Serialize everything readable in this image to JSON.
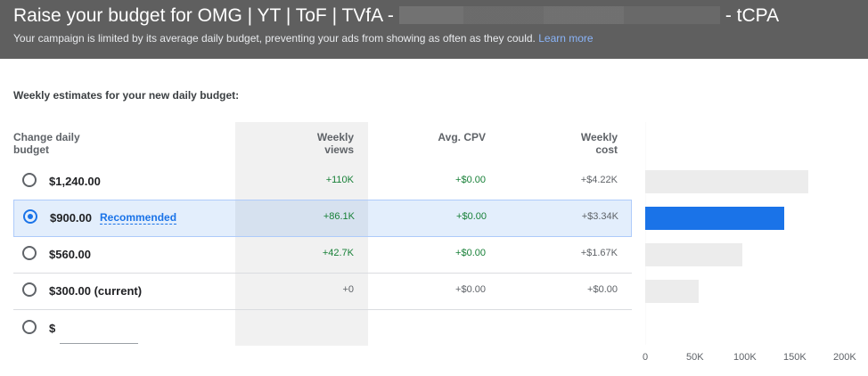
{
  "header": {
    "title_prefix": "Raise your budget for OMG | YT | ToF | TVfA -",
    "title_suffix": "- tCPA",
    "subtitle": "Your campaign is limited by its average daily budget, preventing your ads from showing as often as they could.",
    "learn_more": "Learn more"
  },
  "estimates_label": "Weekly estimates for your new daily budget:",
  "columns": {
    "budget_line1": "Change daily",
    "budget_line2": "budget",
    "views_line1": "Weekly",
    "views_line2": "views",
    "cpv": "Avg. CPV",
    "cost_line1": "Weekly",
    "cost_line2": "cost"
  },
  "rows": [
    {
      "amount": "$1,240.00",
      "views": "+110K",
      "cpv": "+$0.00",
      "cost": "+$4.22K",
      "selected": false,
      "views_value": 110000
    },
    {
      "amount": "$900.00",
      "badge": "Recommended",
      "views": "+86.1K",
      "cpv": "+$0.00",
      "cost": "+$3.34K",
      "selected": true,
      "views_value": 86100
    },
    {
      "amount": "$560.00",
      "views": "+42.7K",
      "cpv": "+$0.00",
      "cost": "+$1.67K",
      "selected": false,
      "views_value": 42700
    },
    {
      "amount": "$300.00 (current)",
      "views": "+0",
      "cpv": "+$0.00",
      "cost": "+$0.00",
      "selected": false,
      "views_value": 0
    }
  ],
  "custom": {
    "currency": "$",
    "value": ""
  },
  "chart_data": {
    "type": "bar",
    "orientation": "horizontal",
    "categories": [
      "$1,240.00",
      "$900.00",
      "$560.00",
      "$300.00 (current)"
    ],
    "values": [
      163000,
      139000,
      97000,
      54000
    ],
    "xlim": [
      0,
      200000
    ],
    "xticks": [
      "0",
      "50K",
      "100K",
      "150K",
      "200K"
    ],
    "colors": {
      "default": "#ececec",
      "selected": "#1a73e8"
    },
    "selected_index": 1
  }
}
